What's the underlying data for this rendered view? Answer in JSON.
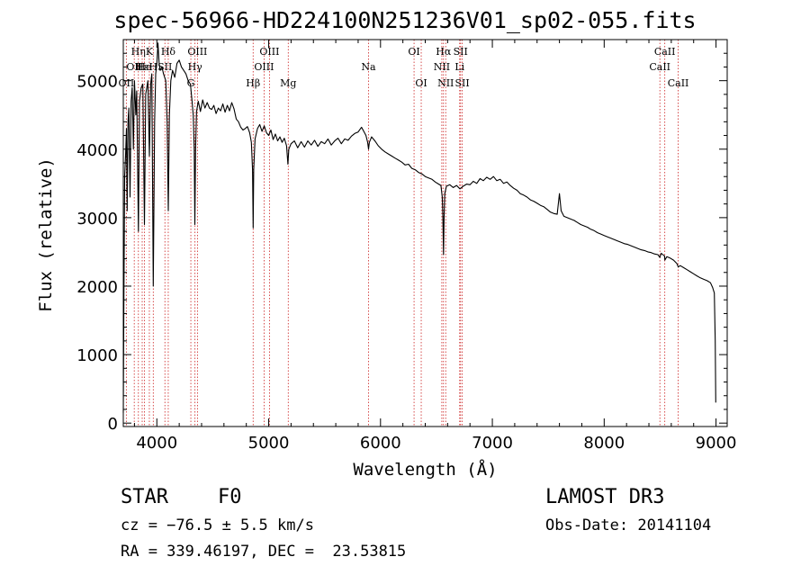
{
  "chart_data": {
    "type": "line",
    "title": "spec-56966-HD224100N251236V01_sp02-055.fits",
    "xlabel": "Wavelength (Å)",
    "ylabel": "Flux (relative)",
    "xlim": [
      3700,
      9100
    ],
    "ylim": [
      -50,
      5600
    ],
    "xticks": [
      4000,
      5000,
      6000,
      7000,
      8000,
      9000
    ],
    "yticks": [
      0,
      1000,
      2000,
      3000,
      4000,
      5000
    ],
    "grid": false,
    "series": [
      {
        "name": "flux",
        "points": [
          [
            3700,
            150
          ],
          [
            3705,
            1700
          ],
          [
            3712,
            3600
          ],
          [
            3720,
            3900
          ],
          [
            3728,
            4300
          ],
          [
            3735,
            3100
          ],
          [
            3742,
            4400
          ],
          [
            3750,
            4600
          ],
          [
            3760,
            3300
          ],
          [
            3770,
            4700
          ],
          [
            3780,
            4900
          ],
          [
            3790,
            4000
          ],
          [
            3800,
            5000
          ],
          [
            3812,
            4500
          ],
          [
            3820,
            4850
          ],
          [
            3835,
            2800
          ],
          [
            3845,
            4700
          ],
          [
            3860,
            4900
          ],
          [
            3875,
            4950
          ],
          [
            3889,
            2900
          ],
          [
            3900,
            4800
          ],
          [
            3920,
            5000
          ],
          [
            3933,
            3900
          ],
          [
            3945,
            4950
          ],
          [
            3955,
            5100
          ],
          [
            3968,
            2000
          ],
          [
            3980,
            4400
          ],
          [
            3990,
            5100
          ],
          [
            4000,
            5250
          ],
          [
            4010,
            5550
          ],
          [
            4020,
            5250
          ],
          [
            4030,
            5150
          ],
          [
            4045,
            5200
          ],
          [
            4060,
            5100
          ],
          [
            4080,
            5000
          ],
          [
            4092,
            4400
          ],
          [
            4102,
            3100
          ],
          [
            4112,
            4500
          ],
          [
            4125,
            5000
          ],
          [
            4140,
            5150
          ],
          [
            4160,
            5050
          ],
          [
            4180,
            5250
          ],
          [
            4200,
            5300
          ],
          [
            4220,
            5200
          ],
          [
            4240,
            5150
          ],
          [
            4260,
            5100
          ],
          [
            4280,
            5000
          ],
          [
            4300,
            4950
          ],
          [
            4315,
            4700
          ],
          [
            4325,
            4500
          ],
          [
            4334,
            4000
          ],
          [
            4340,
            2900
          ],
          [
            4346,
            4000
          ],
          [
            4355,
            4550
          ],
          [
            4370,
            4700
          ],
          [
            4390,
            4550
          ],
          [
            4410,
            4720
          ],
          [
            4430,
            4600
          ],
          [
            4450,
            4680
          ],
          [
            4470,
            4600
          ],
          [
            4490,
            4580
          ],
          [
            4510,
            4640
          ],
          [
            4530,
            4520
          ],
          [
            4550,
            4600
          ],
          [
            4570,
            4560
          ],
          [
            4590,
            4660
          ],
          [
            4610,
            4540
          ],
          [
            4630,
            4640
          ],
          [
            4650,
            4560
          ],
          [
            4670,
            4680
          ],
          [
            4690,
            4590
          ],
          [
            4710,
            4440
          ],
          [
            4730,
            4400
          ],
          [
            4750,
            4320
          ],
          [
            4770,
            4280
          ],
          [
            4790,
            4300
          ],
          [
            4810,
            4330
          ],
          [
            4830,
            4240
          ],
          [
            4845,
            4100
          ],
          [
            4856,
            3700
          ],
          [
            4861,
            2850
          ],
          [
            4866,
            3700
          ],
          [
            4878,
            4150
          ],
          [
            4900,
            4300
          ],
          [
            4920,
            4360
          ],
          [
            4940,
            4260
          ],
          [
            4960,
            4340
          ],
          [
            4980,
            4240
          ],
          [
            5000,
            4200
          ],
          [
            5020,
            4280
          ],
          [
            5040,
            4140
          ],
          [
            5060,
            4220
          ],
          [
            5080,
            4120
          ],
          [
            5100,
            4180
          ],
          [
            5120,
            4100
          ],
          [
            5140,
            4160
          ],
          [
            5160,
            4050
          ],
          [
            5172,
            3780
          ],
          [
            5180,
            4000
          ],
          [
            5200,
            4080
          ],
          [
            5230,
            4120
          ],
          [
            5260,
            4020
          ],
          [
            5290,
            4110
          ],
          [
            5320,
            4030
          ],
          [
            5350,
            4120
          ],
          [
            5380,
            4060
          ],
          [
            5410,
            4130
          ],
          [
            5440,
            4040
          ],
          [
            5470,
            4110
          ],
          [
            5500,
            4080
          ],
          [
            5530,
            4150
          ],
          [
            5560,
            4060
          ],
          [
            5590,
            4120
          ],
          [
            5620,
            4160
          ],
          [
            5650,
            4080
          ],
          [
            5680,
            4150
          ],
          [
            5710,
            4130
          ],
          [
            5740,
            4190
          ],
          [
            5770,
            4230
          ],
          [
            5800,
            4250
          ],
          [
            5830,
            4320
          ],
          [
            5850,
            4260
          ],
          [
            5870,
            4200
          ],
          [
            5885,
            4100
          ],
          [
            5893,
            4000
          ],
          [
            5900,
            4100
          ],
          [
            5920,
            4180
          ],
          [
            5950,
            4120
          ],
          [
            5980,
            4050
          ],
          [
            6010,
            4000
          ],
          [
            6040,
            3960
          ],
          [
            6070,
            3930
          ],
          [
            6100,
            3900
          ],
          [
            6130,
            3870
          ],
          [
            6160,
            3840
          ],
          [
            6190,
            3810
          ],
          [
            6220,
            3770
          ],
          [
            6250,
            3780
          ],
          [
            6280,
            3720
          ],
          [
            6310,
            3700
          ],
          [
            6340,
            3660
          ],
          [
            6370,
            3640
          ],
          [
            6400,
            3600
          ],
          [
            6430,
            3580
          ],
          [
            6460,
            3560
          ],
          [
            6490,
            3520
          ],
          [
            6520,
            3490
          ],
          [
            6540,
            3470
          ],
          [
            6552,
            3300
          ],
          [
            6558,
            3000
          ],
          [
            6563,
            2460
          ],
          [
            6568,
            3000
          ],
          [
            6575,
            3350
          ],
          [
            6590,
            3460
          ],
          [
            6620,
            3480
          ],
          [
            6650,
            3440
          ],
          [
            6680,
            3470
          ],
          [
            6710,
            3420
          ],
          [
            6740,
            3460
          ],
          [
            6770,
            3490
          ],
          [
            6800,
            3480
          ],
          [
            6830,
            3530
          ],
          [
            6860,
            3500
          ],
          [
            6890,
            3570
          ],
          [
            6920,
            3540
          ],
          [
            6950,
            3590
          ],
          [
            6980,
            3560
          ],
          [
            7010,
            3600
          ],
          [
            7040,
            3540
          ],
          [
            7070,
            3560
          ],
          [
            7100,
            3500
          ],
          [
            7130,
            3520
          ],
          [
            7160,
            3470
          ],
          [
            7190,
            3430
          ],
          [
            7220,
            3400
          ],
          [
            7250,
            3350
          ],
          [
            7280,
            3330
          ],
          [
            7310,
            3300
          ],
          [
            7340,
            3260
          ],
          [
            7370,
            3240
          ],
          [
            7400,
            3210
          ],
          [
            7430,
            3180
          ],
          [
            7460,
            3160
          ],
          [
            7490,
            3120
          ],
          [
            7520,
            3080
          ],
          [
            7550,
            3060
          ],
          [
            7580,
            3050
          ],
          [
            7600,
            3350
          ],
          [
            7615,
            3100
          ],
          [
            7640,
            3020
          ],
          [
            7670,
            3000
          ],
          [
            7700,
            2980
          ],
          [
            7730,
            2960
          ],
          [
            7760,
            2930
          ],
          [
            7790,
            2900
          ],
          [
            7820,
            2880
          ],
          [
            7850,
            2860
          ],
          [
            7880,
            2830
          ],
          [
            7910,
            2810
          ],
          [
            7940,
            2780
          ],
          [
            7970,
            2760
          ],
          [
            8000,
            2740
          ],
          [
            8030,
            2720
          ],
          [
            8060,
            2700
          ],
          [
            8090,
            2680
          ],
          [
            8120,
            2660
          ],
          [
            8150,
            2640
          ],
          [
            8180,
            2620
          ],
          [
            8210,
            2610
          ],
          [
            8240,
            2590
          ],
          [
            8270,
            2570
          ],
          [
            8300,
            2550
          ],
          [
            8330,
            2530
          ],
          [
            8360,
            2520
          ],
          [
            8390,
            2500
          ],
          [
            8420,
            2490
          ],
          [
            8450,
            2470
          ],
          [
            8480,
            2460
          ],
          [
            8498,
            2420
          ],
          [
            8510,
            2480
          ],
          [
            8540,
            2440
          ],
          [
            8542,
            2380
          ],
          [
            8560,
            2430
          ],
          [
            8590,
            2410
          ],
          [
            8620,
            2380
          ],
          [
            8650,
            2330
          ],
          [
            8662,
            2280
          ],
          [
            8680,
            2300
          ],
          [
            8710,
            2270
          ],
          [
            8740,
            2240
          ],
          [
            8770,
            2210
          ],
          [
            8800,
            2180
          ],
          [
            8830,
            2150
          ],
          [
            8860,
            2120
          ],
          [
            8890,
            2100
          ],
          [
            8920,
            2080
          ],
          [
            8950,
            2050
          ],
          [
            8970,
            1980
          ],
          [
            8985,
            1900
          ],
          [
            8993,
            1200
          ],
          [
            8998,
            300
          ]
        ]
      }
    ],
    "lines": [
      {
        "wl": 3727,
        "label": "OII",
        "row": 2,
        "ha": "center"
      },
      {
        "wl": 3798,
        "label": "OII",
        "row": 1,
        "ha": "center"
      },
      {
        "wl": 3835,
        "label": "Hη",
        "row": 0,
        "ha": "center"
      },
      {
        "wl": 3869,
        "label": "Hε",
        "row": 1,
        "ha": "center"
      },
      {
        "wl": 3889,
        "label": "He",
        "row": 1,
        "ha": "center"
      },
      {
        "wl": 3933,
        "label": "K",
        "row": 0,
        "ha": "center"
      },
      {
        "wl": 3968,
        "label": "H",
        "row": 1,
        "ha": "center"
      },
      {
        "wl": 4072,
        "label": "SII",
        "row": 1,
        "ha": "center"
      },
      {
        "wl": 4102,
        "label": "Hδ",
        "row": 0,
        "ha": "center"
      },
      {
        "wl": 4304,
        "label": "G",
        "row": 2,
        "ha": "center"
      },
      {
        "wl": 4341,
        "label": "Hγ",
        "row": 1,
        "ha": "center"
      },
      {
        "wl": 4363,
        "label": "OIII",
        "row": 0,
        "ha": "center"
      },
      {
        "wl": 4861,
        "label": "Hβ",
        "row": 2,
        "ha": "center"
      },
      {
        "wl": 4959,
        "label": "OIII",
        "row": 1,
        "ha": "center"
      },
      {
        "wl": 5007,
        "label": "OIII",
        "row": 0,
        "ha": "center"
      },
      {
        "wl": 5175,
        "label": "Mg",
        "row": 2,
        "ha": "center"
      },
      {
        "wl": 5893,
        "label": "Na",
        "row": 1,
        "ha": "center"
      },
      {
        "wl": 6300,
        "label": "OI",
        "row": 0,
        "ha": "center"
      },
      {
        "wl": 6364,
        "label": "OI",
        "row": 2,
        "ha": "center"
      },
      {
        "wl": 6548,
        "label": "NII",
        "row": 1,
        "ha": "center"
      },
      {
        "wl": 6563,
        "label": "Hα",
        "row": 0,
        "ha": "center"
      },
      {
        "wl": 6583,
        "label": "NII",
        "row": 2,
        "ha": "center"
      },
      {
        "wl": 6708,
        "label": "Li",
        "row": 1,
        "ha": "center"
      },
      {
        "wl": 6716,
        "label": "SII",
        "row": 0,
        "ha": "center"
      },
      {
        "wl": 6731,
        "label": "SII",
        "row": 2,
        "ha": "center"
      },
      {
        "wl": 8498,
        "label": "CaII",
        "row": 1,
        "ha": "center"
      },
      {
        "wl": 8542,
        "label": "CaII",
        "row": 0,
        "ha": "center"
      },
      {
        "wl": 8662,
        "label": "CaII",
        "row": 2,
        "ha": "center"
      }
    ],
    "line_color": "#cc2222"
  },
  "info": {
    "class": "STAR",
    "subclass": "F0",
    "survey": "LAMOST DR3",
    "cz": "cz = −76.5 ± 5.5 km/s",
    "obs_date": "Obs-Date: 20141104",
    "coords": "RA = 339.46197, DEC =  23.53815"
  }
}
